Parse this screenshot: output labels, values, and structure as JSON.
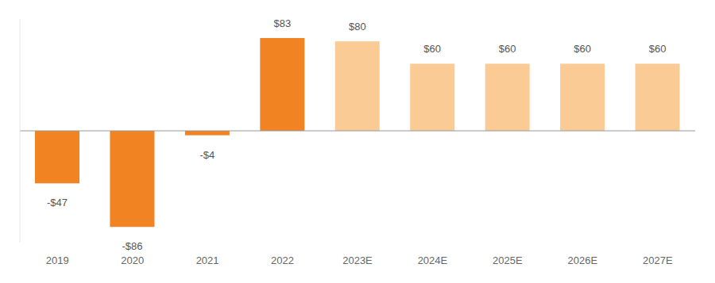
{
  "chart_data": {
    "type": "bar",
    "categories": [
      "2019",
      "2020",
      "2021",
      "2022",
      "2023E",
      "2024E",
      "2025E",
      "2026E",
      "2027E"
    ],
    "values": [
      -47,
      -86,
      -4,
      83,
      80,
      60,
      60,
      60,
      60
    ],
    "value_labels": [
      "-$47",
      "-$86",
      "-$4",
      "$83",
      "$80",
      "$60",
      "$60",
      "$60",
      "$60"
    ],
    "colors": [
      "#f28322",
      "#f28322",
      "#f28322",
      "#f28322",
      "#fbcb96",
      "#fbcb96",
      "#fbcb96",
      "#fbcb96",
      "#fbcb96"
    ],
    "ylim": [
      -100,
      100
    ],
    "tick_labels": "x",
    "data_labels": true
  }
}
